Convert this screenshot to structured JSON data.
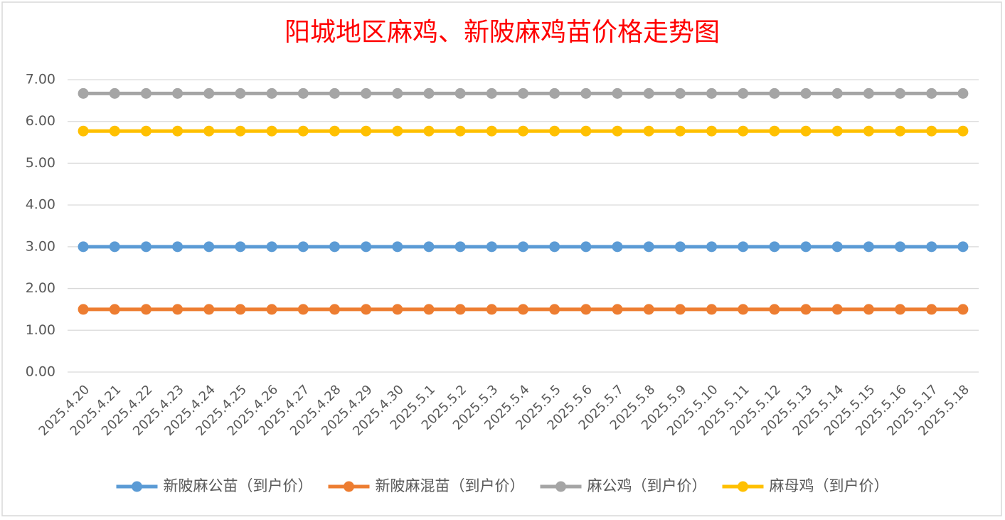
{
  "chart_data": {
    "type": "line",
    "title": "阳城地区麻鸡、新陂麻鸡苗价格走势图",
    "categories": [
      "2025.4.20",
      "2025.4.21",
      "2025.4.22",
      "2025.4.23",
      "2025.4.24",
      "2025.4.25",
      "2025.4.26",
      "2025.4.27",
      "2025.4.28",
      "2025.4.29",
      "2025.4.30",
      "2025.5.1",
      "2025.5.2",
      "2025.5.3",
      "2025.5.4",
      "2025.5.5",
      "2025.5.6",
      "2025.5.7",
      "2025.5.8",
      "2025.5.9",
      "2025.5.10",
      "2025.5.11",
      "2025.5.12",
      "2025.5.13",
      "2025.5.14",
      "2025.5.15",
      "2025.5.16",
      "2025.5.17",
      "2025.5.18"
    ],
    "series": [
      {
        "name": "新陂麻公苗（到户价）",
        "color": "#5b9bd5",
        "values": [
          3,
          3,
          3,
          3,
          3,
          3,
          3,
          3,
          3,
          3,
          3,
          3,
          3,
          3,
          3,
          3,
          3,
          3,
          3,
          3,
          3,
          3,
          3,
          3,
          3,
          3,
          3,
          3,
          3
        ]
      },
      {
        "name": "新陂麻混苗（到户价）",
        "color": "#ed7d31",
        "values": [
          1.5,
          1.5,
          1.5,
          1.5,
          1.5,
          1.5,
          1.5,
          1.5,
          1.5,
          1.5,
          1.5,
          1.5,
          1.5,
          1.5,
          1.5,
          1.5,
          1.5,
          1.5,
          1.5,
          1.5,
          1.5,
          1.5,
          1.5,
          1.5,
          1.5,
          1.5,
          1.5,
          1.5,
          1.5
        ]
      },
      {
        "name": "麻公鸡（到户价）",
        "color": "#a5a5a5",
        "values": [
          6.67,
          6.67,
          6.67,
          6.67,
          6.67,
          6.67,
          6.67,
          6.67,
          6.67,
          6.67,
          6.67,
          6.67,
          6.67,
          6.67,
          6.67,
          6.67,
          6.67,
          6.67,
          6.67,
          6.67,
          6.67,
          6.67,
          6.67,
          6.67,
          6.67,
          6.67,
          6.67,
          6.67,
          6.67
        ]
      },
      {
        "name": "麻母鸡（到户价）",
        "color": "#ffc000",
        "values": [
          5.77,
          5.77,
          5.77,
          5.77,
          5.77,
          5.77,
          5.77,
          5.77,
          5.77,
          5.77,
          5.77,
          5.77,
          5.77,
          5.77,
          5.77,
          5.77,
          5.77,
          5.77,
          5.77,
          5.77,
          5.77,
          5.77,
          5.77,
          5.77,
          5.77,
          5.77,
          5.77,
          5.77,
          5.77
        ]
      }
    ],
    "ylim": [
      0,
      7
    ],
    "yticks": [
      {
        "value": 0,
        "label": "0.00"
      },
      {
        "value": 1,
        "label": "1.00"
      },
      {
        "value": 2,
        "label": "2.00"
      },
      {
        "value": 3,
        "label": "3.00"
      },
      {
        "value": 4,
        "label": "4.00"
      },
      {
        "value": 5,
        "label": "5.00"
      },
      {
        "value": 6,
        "label": "6.00"
      },
      {
        "value": 7,
        "label": "7.00"
      }
    ],
    "grid": true,
    "legend": "bottom"
  }
}
